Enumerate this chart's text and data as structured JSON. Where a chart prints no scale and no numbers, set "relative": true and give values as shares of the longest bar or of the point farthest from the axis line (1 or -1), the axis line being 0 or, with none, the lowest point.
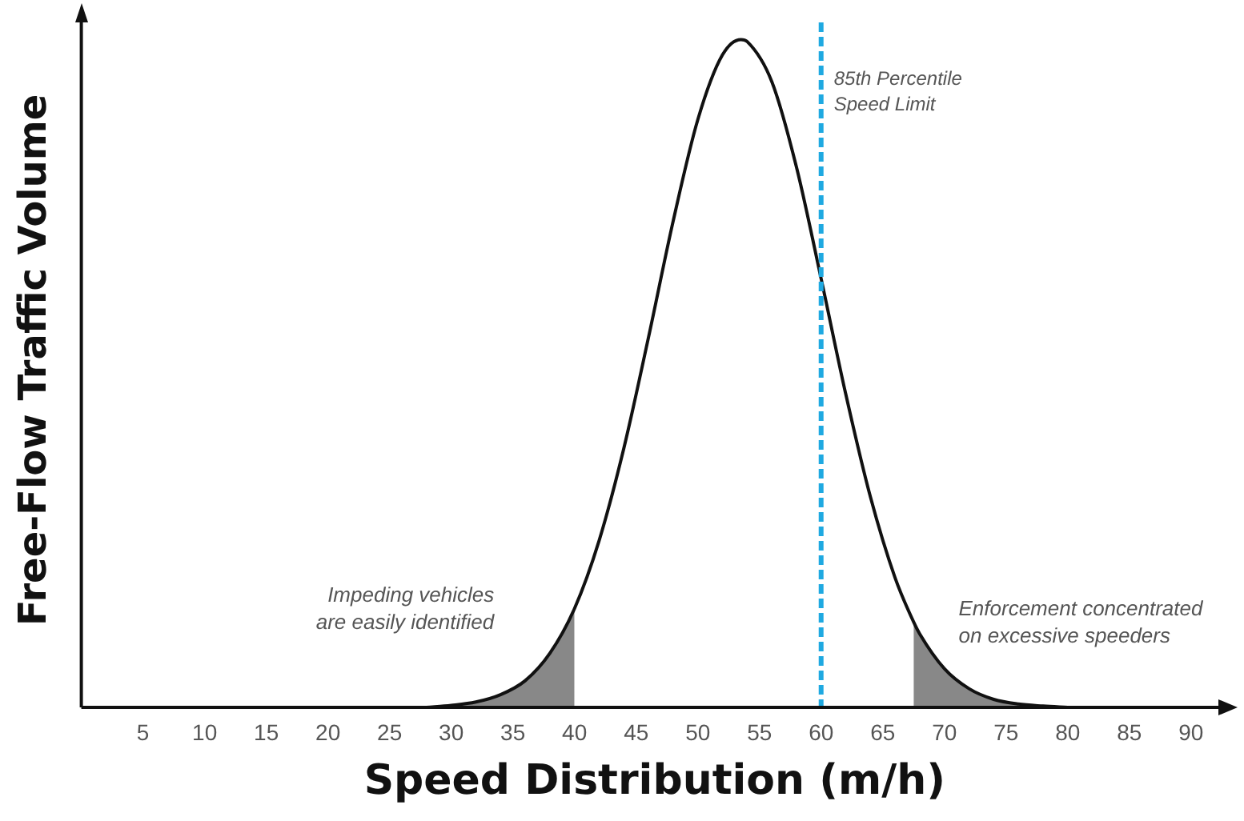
{
  "chart_data": {
    "type": "line",
    "xlabel": "Speed Distribution (m/h)",
    "ylabel": "Free-Flow Traffic Volume",
    "relative": true,
    "xlim": [
      0,
      93
    ],
    "xticks": [
      5,
      10,
      15,
      20,
      25,
      30,
      35,
      40,
      45,
      50,
      55,
      60,
      65,
      70,
      75,
      80,
      85,
      90
    ],
    "grid": false,
    "legend": false,
    "marker": "none",
    "series": [
      {
        "type": "area",
        "color": "#888888",
        "x": [
          28,
          30,
          32,
          34,
          36,
          38,
          40
        ],
        "values": [
          0,
          0.003,
          0.008,
          0.019,
          0.04,
          0.081,
          0.148
        ]
      },
      {
        "type": "area",
        "color": "#888888",
        "x": [
          67.5,
          68,
          70,
          72,
          74,
          76,
          78,
          80
        ],
        "values": [
          0.128,
          0.11,
          0.058,
          0.028,
          0.012,
          0.005,
          0.002,
          0
        ]
      },
      {
        "type": "line",
        "color": "#111111",
        "x": [
          28,
          30,
          32,
          34,
          36,
          38,
          40,
          42,
          44,
          46,
          48,
          50,
          52,
          53.5,
          54,
          56,
          58,
          60,
          62,
          64,
          66,
          67.5,
          68,
          70,
          72,
          74,
          76,
          78,
          80
        ],
        "values": [
          0,
          0.003,
          0.008,
          0.019,
          0.04,
          0.081,
          0.148,
          0.25,
          0.388,
          0.554,
          0.728,
          0.88,
          0.977,
          1,
          0.997,
          0.937,
          0.809,
          0.642,
          0.469,
          0.315,
          0.194,
          0.128,
          0.11,
          0.058,
          0.028,
          0.012,
          0.005,
          0.002,
          0
        ]
      }
    ],
    "ref_lines": [
      {
        "axis": "x",
        "value": 60,
        "label": "85th Percentile\nSpeed Limit",
        "color": "#1fa9e1",
        "line_style": "dashed"
      }
    ],
    "annotations": [
      "Impeding vehicles\nare easily identified",
      "Enforcement concentrated\non excessive speeders"
    ]
  }
}
